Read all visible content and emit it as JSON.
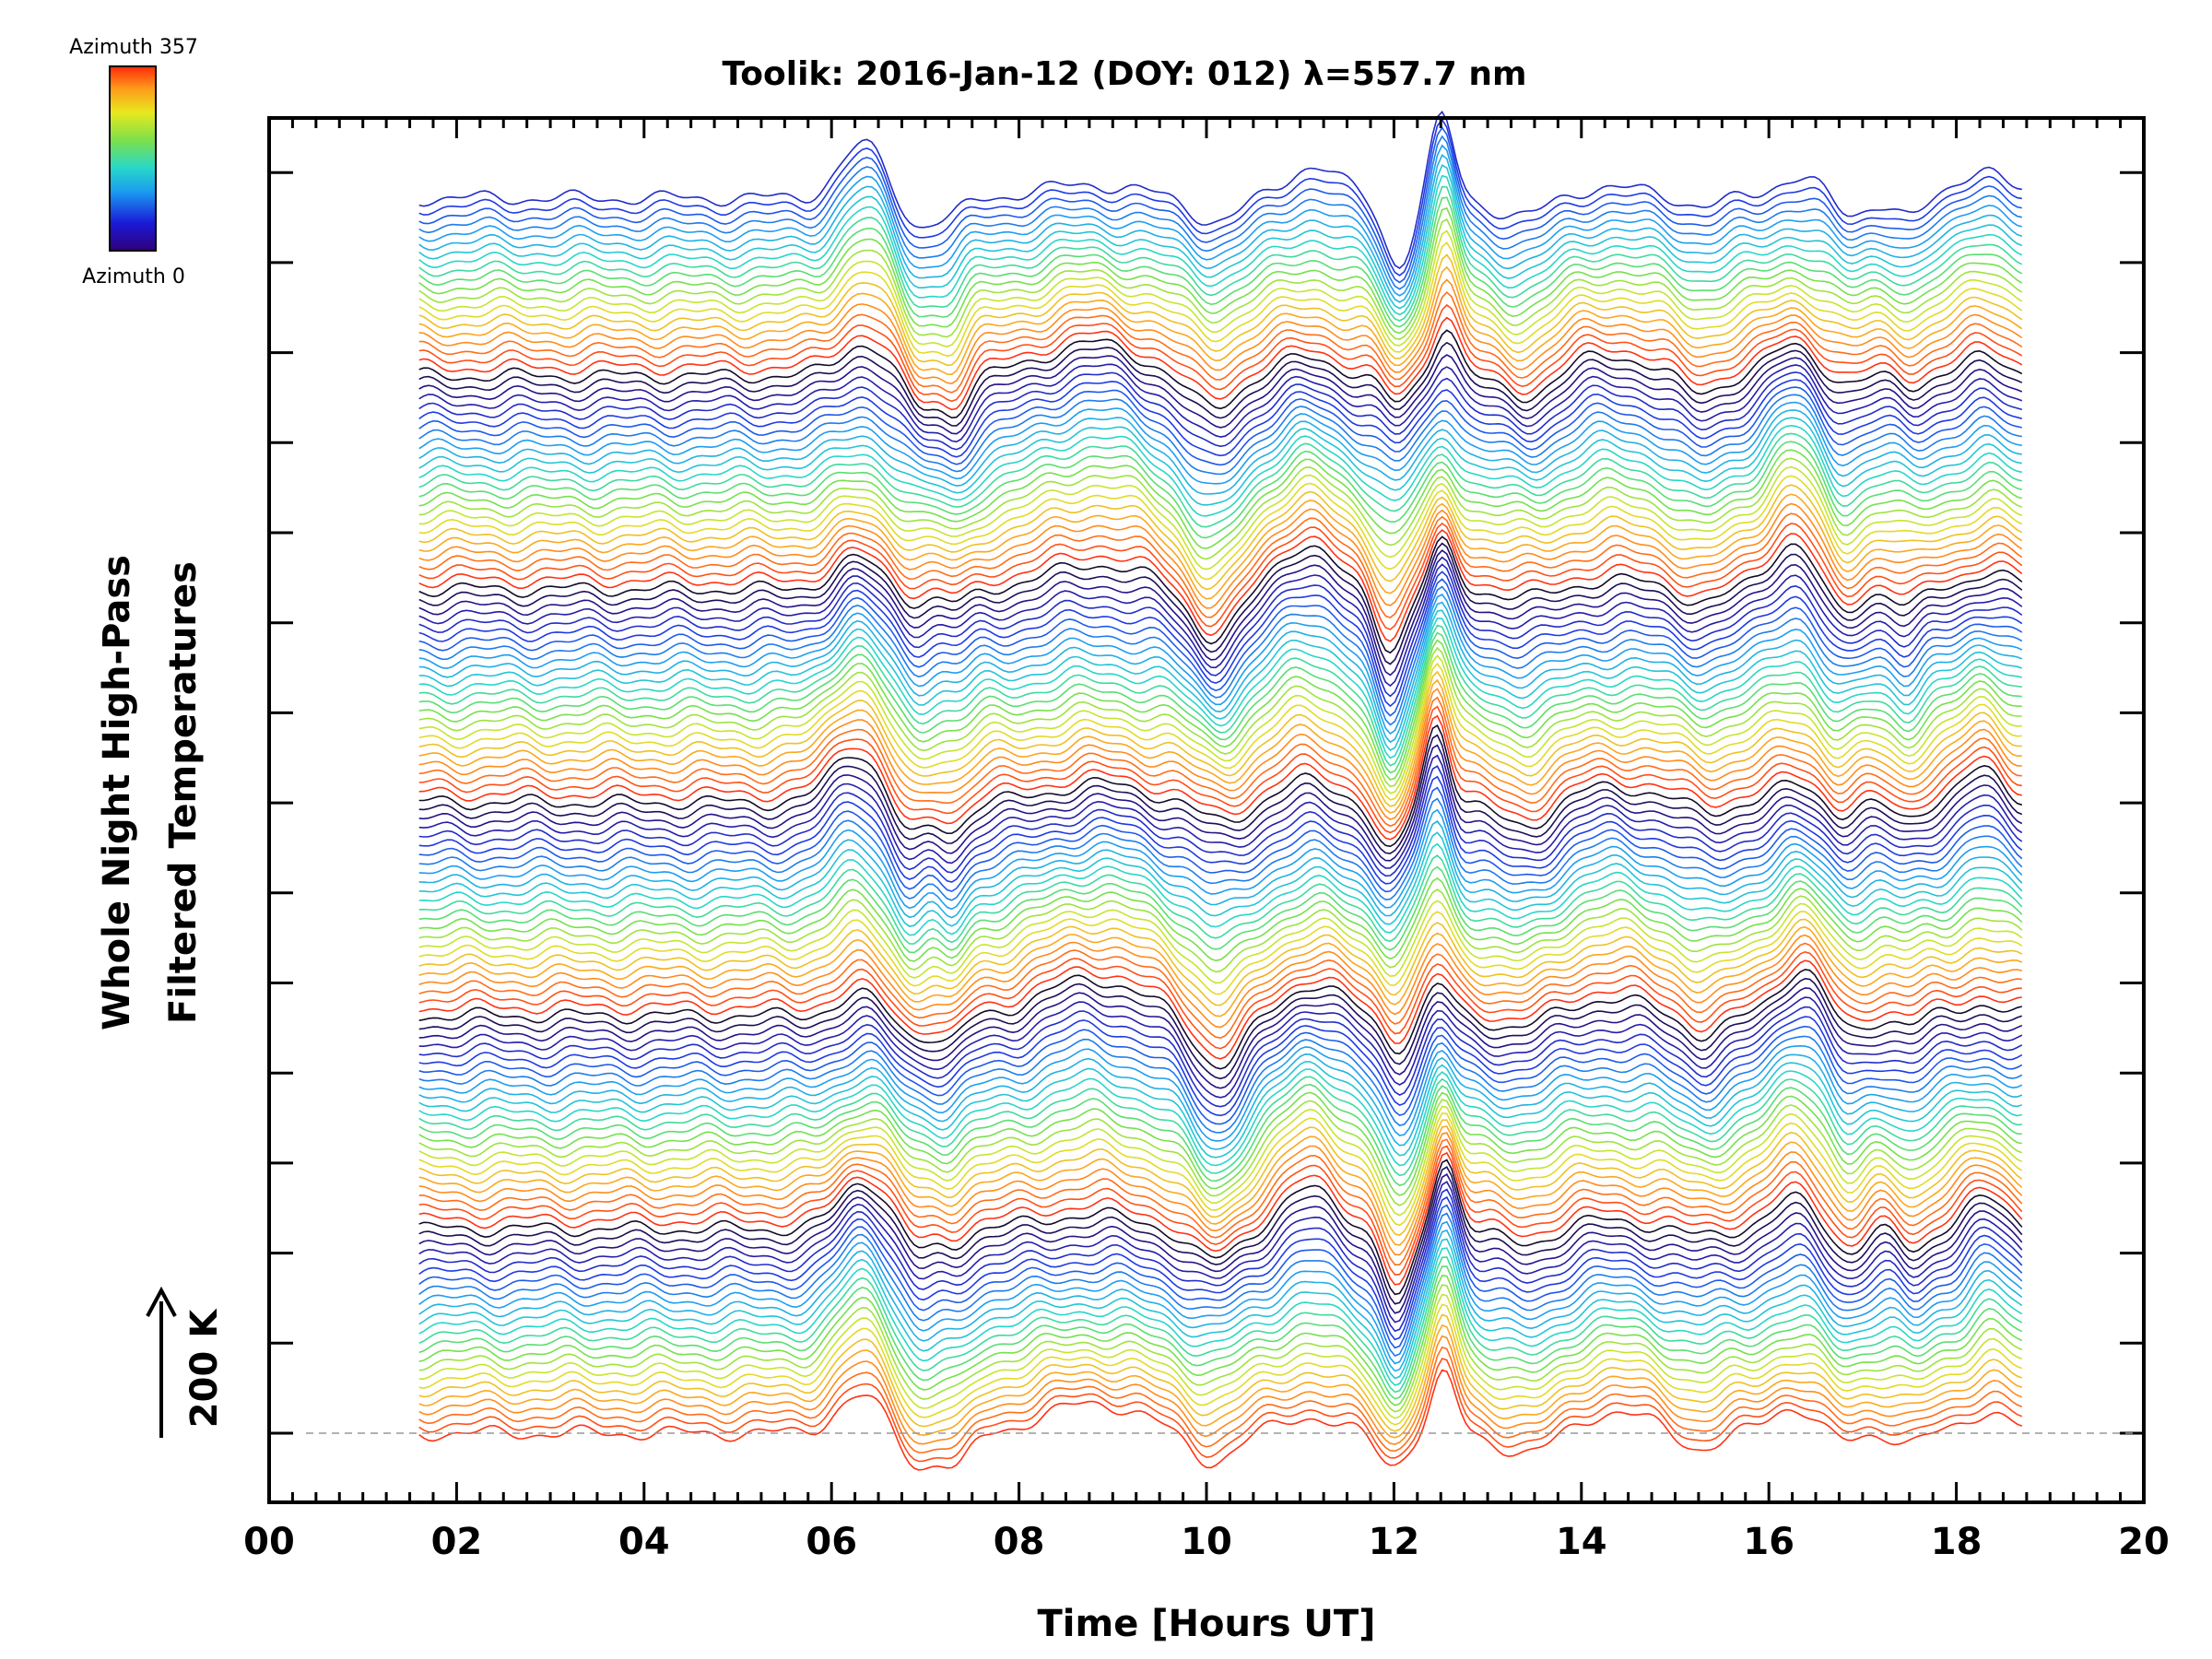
{
  "chart_data": {
    "type": "line",
    "title": "Toolik: 2016-Jan-12 (DOY: 012) λ=557.7 nm",
    "xlabel": "Time [Hours UT]",
    "ylabel_line1": "Whole Night High-Pass",
    "ylabel_line2": "Filtered Temperatures",
    "xlim": [
      0,
      20
    ],
    "x_ticks": [
      "00",
      "02",
      "04",
      "06",
      "08",
      "10",
      "12",
      "14",
      "16",
      "18",
      "20"
    ],
    "scale_bar_label": "200 K",
    "scale_bar_kelvin": 200,
    "colorbar": {
      "top_label": "Azimuth 357",
      "bottom_label": "Azimuth 0",
      "colormap": "rainbow",
      "min": 0,
      "max": 357
    },
    "series_count": 140,
    "azimuth_cycle": 24,
    "time_start_h": 1.6,
    "time_end_h": 18.7,
    "major_y_ticks": 15,
    "reference_line": "dashed baseline at bottom trace",
    "features": [
      {
        "t": 6.3,
        "amplitude_k": 130,
        "width_h": 0.35
      },
      {
        "t": 6.9,
        "amplitude_k": -90,
        "width_h": 0.25
      },
      {
        "t": 7.3,
        "amplitude_k": -80,
        "width_h": 0.2
      },
      {
        "t": 8.8,
        "amplitude_k": 90,
        "width_h": 0.7
      },
      {
        "t": 10.1,
        "amplitude_k": -130,
        "width_h": 0.35
      },
      {
        "t": 11.1,
        "amplitude_k": 110,
        "width_h": 0.4
      },
      {
        "t": 12.0,
        "amplitude_k": -170,
        "width_h": 0.22
      },
      {
        "t": 12.5,
        "amplitude_k": 200,
        "width_h": 0.18
      },
      {
        "t": 13.4,
        "amplitude_k": -60,
        "width_h": 0.4
      },
      {
        "t": 14.3,
        "amplitude_k": 50,
        "width_h": 0.6
      },
      {
        "t": 15.3,
        "amplitude_k": -50,
        "width_h": 0.3
      },
      {
        "t": 16.3,
        "amplitude_k": 120,
        "width_h": 0.35
      },
      {
        "t": 16.8,
        "amplitude_k": -70,
        "width_h": 0.25
      },
      {
        "t": 17.5,
        "amplitude_k": -50,
        "width_h": 0.2
      },
      {
        "t": 18.3,
        "amplitude_k": 80,
        "width_h": 0.3
      }
    ]
  }
}
